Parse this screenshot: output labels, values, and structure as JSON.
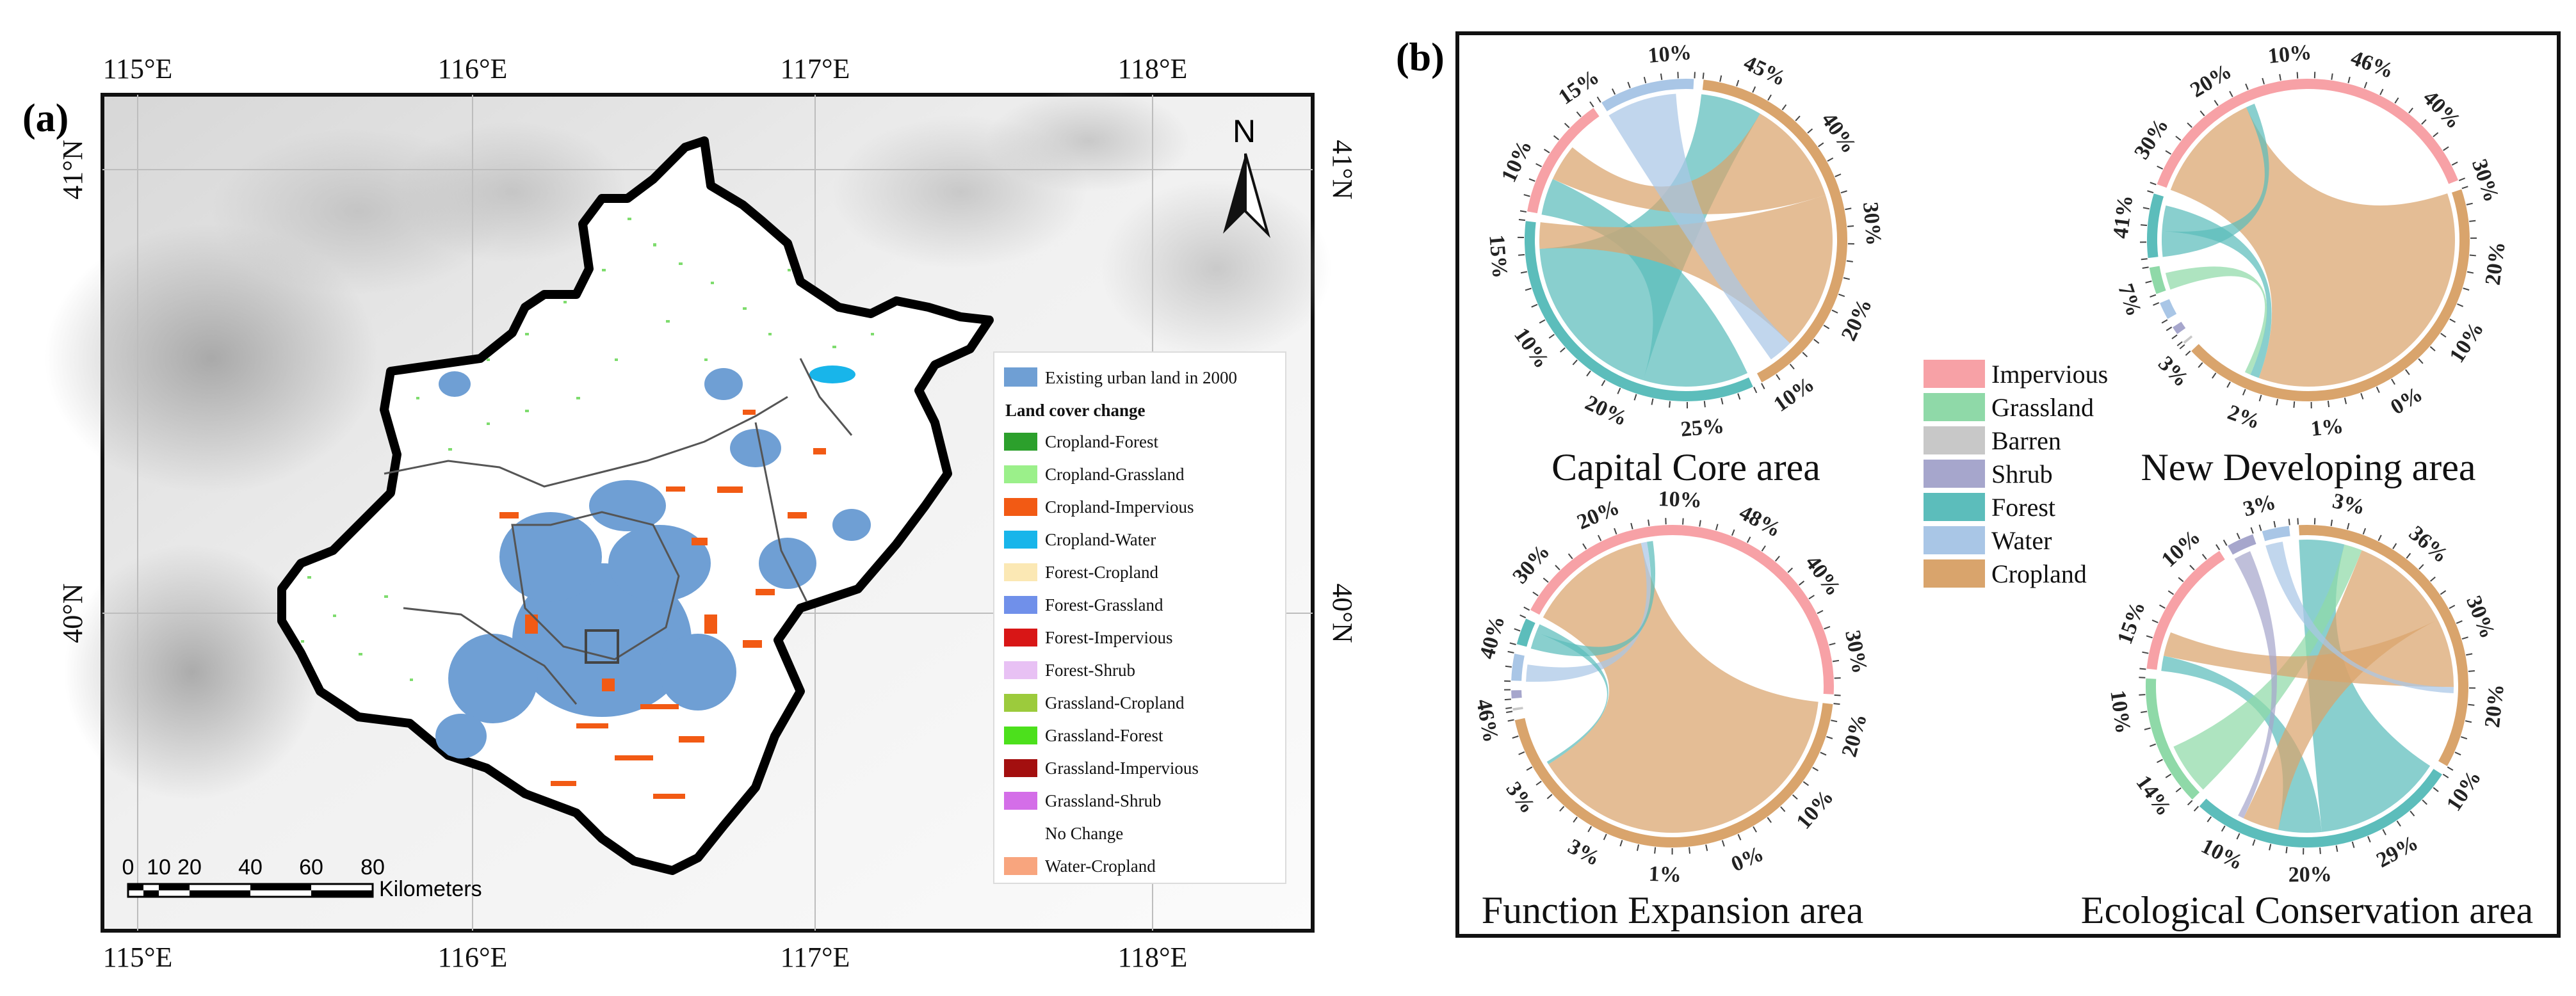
{
  "panel_a": {
    "label": "(a)",
    "north_arrow": "N",
    "lon_ticks": [
      "115°E",
      "116°E",
      "117°E",
      "118°E"
    ],
    "lat_ticks": [
      "41°N",
      "40°N"
    ],
    "scale_bar": {
      "values": [
        "0",
        "10",
        "20",
        "40",
        "60",
        "80"
      ],
      "unit": "Kilometers"
    },
    "legend": {
      "urban_label": "Existing urban land in 2000",
      "urban_color": "#6f9fd4",
      "heading": "Land cover change",
      "items": [
        {
          "label": "Cropland-Forest",
          "color": "#2ca02c"
        },
        {
          "label": "Cropland-Grassland",
          "color": "#9bf08a"
        },
        {
          "label": "Cropland-Impervious",
          "color": "#f25a14"
        },
        {
          "label": "Cropland-Water",
          "color": "#18b5ea"
        },
        {
          "label": "Forest-Cropland",
          "color": "#fbe8b4"
        },
        {
          "label": "Forest-Grassland",
          "color": "#7090ea"
        },
        {
          "label": "Forest-Impervious",
          "color": "#d81616"
        },
        {
          "label": "Forest-Shrub",
          "color": "#e8c1f4"
        },
        {
          "label": "Grassland-Cropland",
          "color": "#9ccb3c"
        },
        {
          "label": "Grassland-Forest",
          "color": "#4ce01c"
        },
        {
          "label": "Grassland-Impervious",
          "color": "#a30f0f"
        },
        {
          "label": "Grassland-Shrub",
          "color": "#d46ee8"
        },
        {
          "label": "No Change",
          "color": "#ffffff"
        },
        {
          "label": "Water-Cropland",
          "color": "#f8a57e"
        }
      ]
    }
  },
  "panel_b": {
    "label": "(b)",
    "legend": [
      {
        "label": "Impervious",
        "color": "#f7a1a6"
      },
      {
        "label": "Grassland",
        "color": "#8fd9a8"
      },
      {
        "label": "Barren",
        "color": "#c8c8c8"
      },
      {
        "label": "Shrub",
        "color": "#a6a6cc"
      },
      {
        "label": "Forest",
        "color": "#5cbdbb"
      },
      {
        "label": "Water",
        "color": "#a9c6e6"
      },
      {
        "label": "Cropland",
        "color": "#d9a46c"
      }
    ]
  },
  "chart_data": [
    {
      "type": "chord",
      "title": "Capital Core area",
      "units": "%",
      "sectors": [
        {
          "name": "Impervious",
          "share": 0.13
        },
        {
          "name": "Water",
          "share": 0.1
        },
        {
          "name": "Cropland",
          "share": 0.42
        },
        {
          "name": "Forest",
          "share": 0.35
        }
      ],
      "flows": [
        {
          "from": "Forest",
          "to": "Impervious",
          "value": 0.12
        },
        {
          "from": "Forest",
          "to": "Cropland",
          "value": 0.2
        },
        {
          "from": "Cropland",
          "to": "Impervious",
          "value": 0.12
        },
        {
          "from": "Cropland",
          "to": "Forest",
          "value": 0.18
        },
        {
          "from": "Water",
          "to": "Cropland",
          "value": 0.08
        }
      ],
      "ring_labels": [
        "10%",
        "15%",
        "10%",
        "45%",
        "40%",
        "30%",
        "20%",
        "10%",
        "25%",
        "20%",
        "10%",
        "15%"
      ]
    },
    {
      "type": "chord",
      "title": "New Developing area",
      "units": "%",
      "sectors": [
        {
          "name": "Impervious",
          "share": 0.41
        },
        {
          "name": "Cropland",
          "share": 0.46
        },
        {
          "name": "Barren",
          "share": 0.0
        },
        {
          "name": "Shrub",
          "share": 0.01
        },
        {
          "name": "Water",
          "share": 0.02
        },
        {
          "name": "Grassland",
          "share": 0.03
        },
        {
          "name": "Forest",
          "share": 0.07
        }
      ],
      "flows": [
        {
          "from": "Cropland",
          "to": "Impervious",
          "value": 0.38
        },
        {
          "from": "Forest",
          "to": "Impervious",
          "value": 0.03
        },
        {
          "from": "Forest",
          "to": "Cropland",
          "value": 0.03
        },
        {
          "from": "Grassland",
          "to": "Cropland",
          "value": 0.02
        }
      ],
      "ring_labels": [
        "30%",
        "20%",
        "10%",
        "46%",
        "40%",
        "30%",
        "20%",
        "10%",
        "0%",
        "1%",
        "2%",
        "3%",
        "7%",
        "41%"
      ]
    },
    {
      "type": "chord",
      "title": "Function Expansion area",
      "units": "%",
      "sectors": [
        {
          "name": "Impervious",
          "share": 0.46
        },
        {
          "name": "Cropland",
          "share": 0.48
        },
        {
          "name": "Barren",
          "share": 0.0
        },
        {
          "name": "Shrub",
          "share": 0.01
        },
        {
          "name": "Water",
          "share": 0.03
        },
        {
          "name": "Forest",
          "share": 0.03
        }
      ],
      "flows": [
        {
          "from": "Cropland",
          "to": "Impervious",
          "value": 0.42
        },
        {
          "from": "Water",
          "to": "Impervious",
          "value": 0.02
        },
        {
          "from": "Forest",
          "to": "Impervious",
          "value": 0.02
        },
        {
          "from": "Forest",
          "to": "Cropland",
          "value": 0.01
        }
      ],
      "ring_labels": [
        "30%",
        "20%",
        "10%",
        "48%",
        "40%",
        "30%",
        "20%",
        "10%",
        "0%",
        "1%",
        "3%",
        "3%",
        "46%",
        "40%"
      ]
    },
    {
      "type": "chord",
      "title": "Ecological Conservation area",
      "units": "%",
      "sectors": [
        {
          "name": "Impervious",
          "share": 0.15
        },
        {
          "name": "Shrub",
          "share": 0.03
        },
        {
          "name": "Water",
          "share": 0.03
        },
        {
          "name": "Cropland",
          "share": 0.36
        },
        {
          "name": "Forest",
          "share": 0.29
        },
        {
          "name": "Grassland",
          "share": 0.14
        }
      ],
      "flows": [
        {
          "from": "Forest",
          "to": "Cropland",
          "value": 0.15
        },
        {
          "from": "Forest",
          "to": "Impervious",
          "value": 0.05
        },
        {
          "from": "Grassland",
          "to": "Cropland",
          "value": 0.06
        },
        {
          "from": "Cropland",
          "to": "Forest",
          "value": 0.12
        },
        {
          "from": "Cropland",
          "to": "Impervious",
          "value": 0.08
        },
        {
          "from": "Water",
          "to": "Cropland",
          "value": 0.02
        },
        {
          "from": "Shrub",
          "to": "Forest",
          "value": 0.02
        }
      ],
      "ring_labels": [
        "15%",
        "10%",
        "3%",
        "3%",
        "36%",
        "30%",
        "20%",
        "10%",
        "29%",
        "20%",
        "10%",
        "14%",
        "10%"
      ]
    }
  ]
}
